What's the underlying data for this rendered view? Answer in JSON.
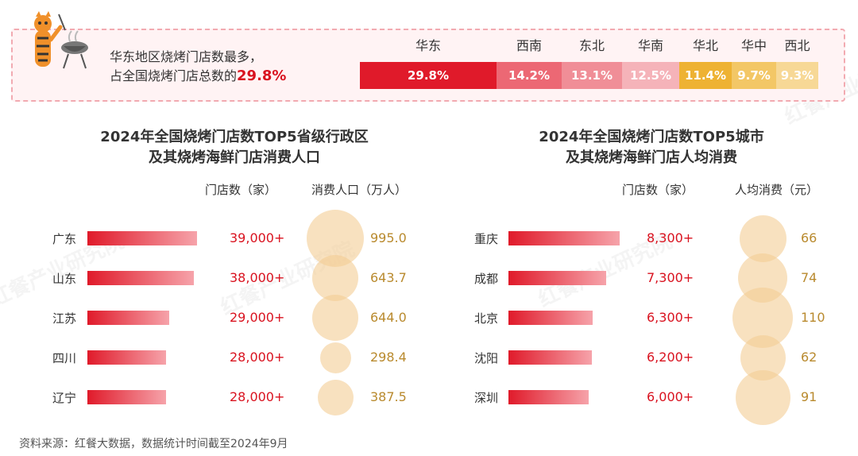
{
  "summary": {
    "line1": "华东地区烧烤门店数最多，",
    "line2_prefix": "占全国烧烤门店总数的",
    "line2_pct": "29.8%"
  },
  "regions": [
    {
      "name": "华东",
      "share": "29.8%",
      "value": 29.8,
      "color": "#e01a2a"
    },
    {
      "name": "西南",
      "share": "14.2%",
      "value": 14.2,
      "color": "#ec6874"
    },
    {
      "name": "东北",
      "share": "13.1%",
      "value": 13.1,
      "color": "#f08e97"
    },
    {
      "name": "华南",
      "share": "12.5%",
      "value": 12.5,
      "color": "#f5b3b9"
    },
    {
      "name": "华北",
      "share": "11.4%",
      "value": 11.4,
      "color": "#eeb233"
    },
    {
      "name": "华中",
      "share": "9.7%",
      "value": 9.7,
      "color": "#f3c766"
    },
    {
      "name": "西北",
      "share": "9.3%",
      "value": 9.3,
      "color": "#f7d896"
    }
  ],
  "left": {
    "title_line1": "2024年全国烧烤门店数TOP5省级行政区",
    "title_line2": "及其烧烤海鲜门店消费人口",
    "col_stores": "门店数（家）",
    "col_second": "消费人口（万人）"
  },
  "right": {
    "title_line1": "2024年全国烧烤门店数TOP5城市",
    "title_line2": "及其烧烤海鲜门店人均消费",
    "col_stores": "门店数（家）",
    "col_second": "人均消费（元）"
  },
  "source": "资料来源：红餐大数据，数据统计时间截至2024年9月",
  "watermark": "红餐产业研究院",
  "chart_data": [
    {
      "type": "bar",
      "categories": [
        "华东",
        "西南",
        "东北",
        "华南",
        "华北",
        "华中",
        "西北"
      ],
      "values": [
        29.8,
        14.2,
        13.1,
        12.5,
        11.4,
        9.7,
        9.3
      ],
      "title": "",
      "ylabel": ""
    },
    {
      "type": "bar",
      "title": "2024年全国烧烤门店数TOP5省级行政区 及其烧烤海鲜门店消费人口",
      "categories": [
        "广东",
        "山东",
        "江苏",
        "四川",
        "辽宁"
      ],
      "series": [
        {
          "name": "门店数（家）",
          "values": [
            39000,
            38000,
            29000,
            28000,
            28000
          ],
          "labels": [
            "39,000+",
            "38,000+",
            "29,000+",
            "28,000+",
            "28,000+"
          ]
        },
        {
          "name": "消费人口（万人）",
          "values": [
            995.0,
            643.7,
            644.0,
            298.4,
            387.5
          ],
          "labels": [
            "995.0",
            "643.7",
            "644.0",
            "298.4",
            "387.5"
          ]
        }
      ]
    },
    {
      "type": "bar",
      "title": "2024年全国烧烤门店数TOP5城市 及其烧烤海鲜门店人均消费",
      "categories": [
        "重庆",
        "成都",
        "北京",
        "沈阳",
        "深圳"
      ],
      "series": [
        {
          "name": "门店数（家）",
          "values": [
            8300,
            7300,
            6300,
            6200,
            6000
          ],
          "labels": [
            "8,300+",
            "7,300+",
            "6,300+",
            "6,200+",
            "6,000+"
          ]
        },
        {
          "name": "人均消费（元）",
          "values": [
            66,
            74,
            110,
            62,
            91
          ],
          "labels": [
            "66",
            "74",
            "110",
            "62",
            "91"
          ]
        }
      ]
    }
  ]
}
